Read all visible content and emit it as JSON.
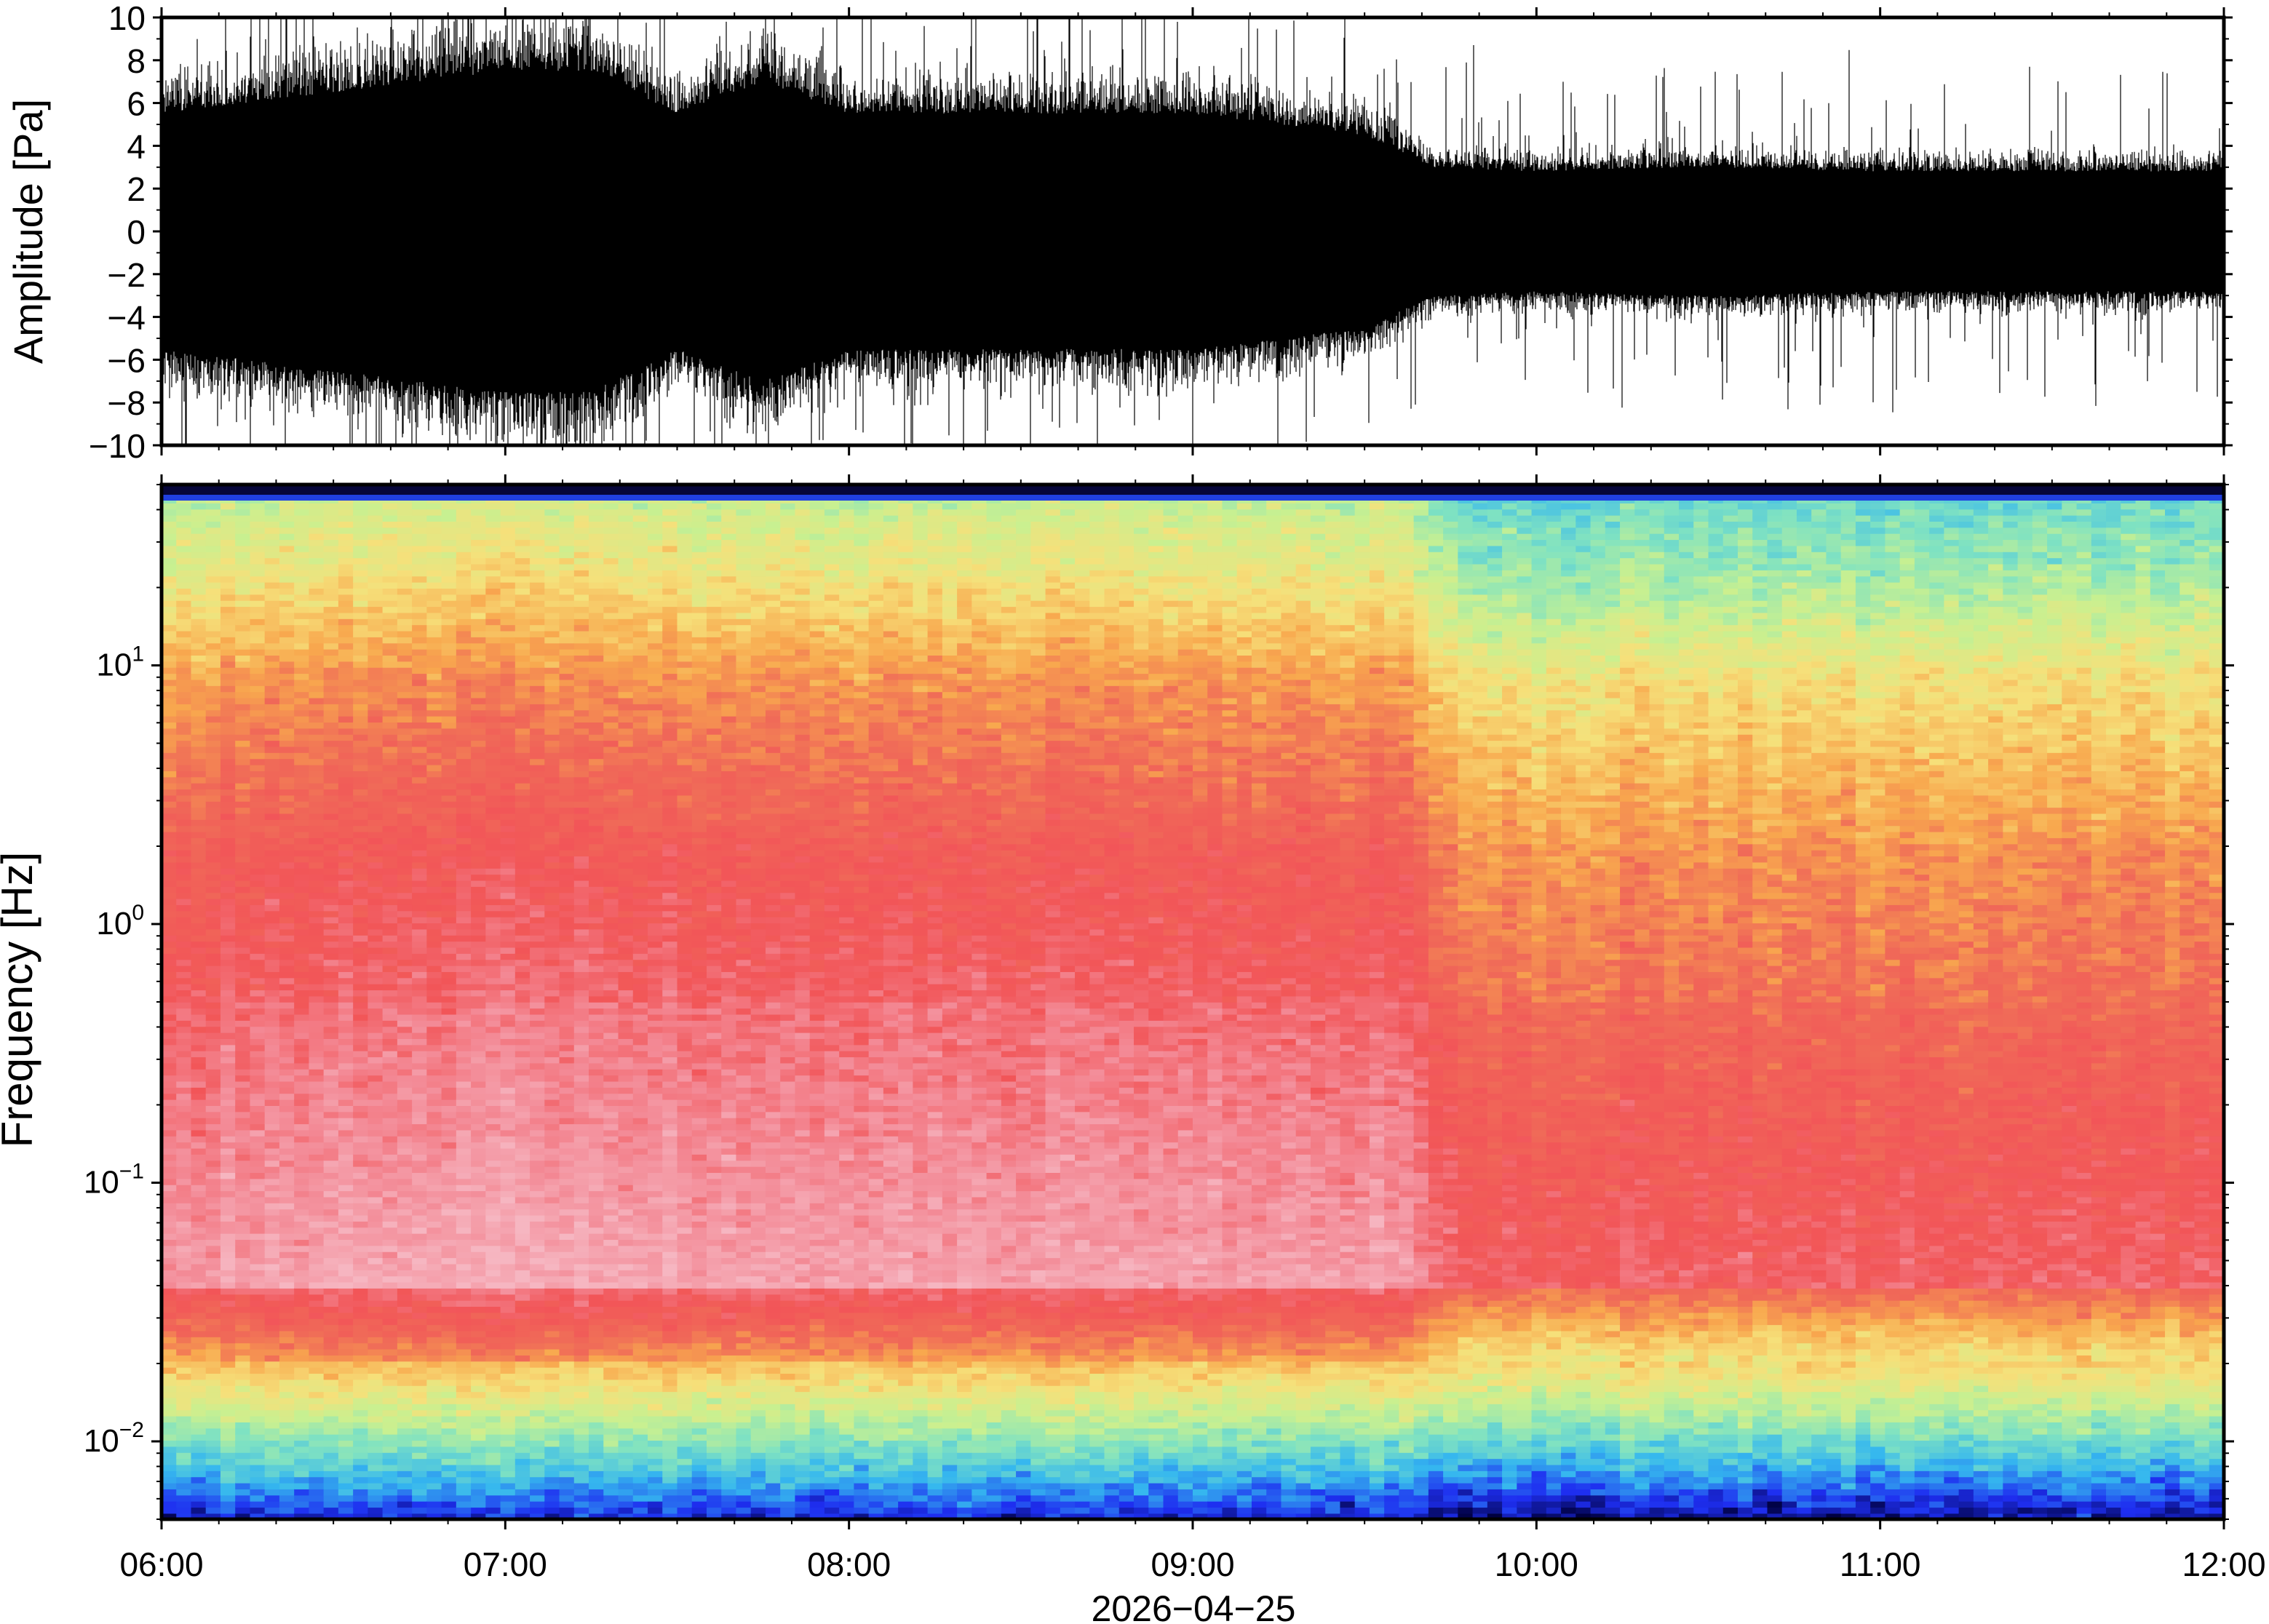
{
  "chart_data": [
    {
      "type": "line",
      "xlim": [
        "06:00",
        "12:00"
      ],
      "ylim": [
        -10,
        10
      ],
      "ylabel": "Amplitude [Pa]",
      "ytick_labels": [
        "10",
        "8",
        "6",
        "4",
        "2",
        "0",
        "−2",
        "−4",
        "−6",
        "−8",
        "−10"
      ],
      "ytick_values": [
        10,
        8,
        6,
        4,
        2,
        0,
        -2,
        -4,
        -6,
        -8,
        -10
      ],
      "series": [
        {
          "x_hours": [
            6.0,
            6.5,
            7.0,
            7.25,
            7.5,
            7.75,
            8.0,
            8.5,
            9.0,
            9.5,
            9.7,
            10.0,
            10.5,
            11.0,
            11.5,
            12.0
          ],
          "envelope": [
            5.5,
            6.5,
            7.5,
            7.5,
            5.5,
            7.0,
            5.5,
            5.5,
            5.5,
            4.5,
            3.0,
            2.8,
            3.0,
            2.8,
            2.8,
            2.8
          ]
        }
      ]
    },
    {
      "type": "heatmap",
      "xlim": [
        "06:00",
        "12:00"
      ],
      "ylim": [
        0.005,
        50
      ],
      "yscale": "log",
      "ylabel": "Frequency [Hz]",
      "ytick_labels": [
        {
          "base": "10",
          "exp": "1",
          "value": 10
        },
        {
          "base": "10",
          "exp": "0",
          "value": 1
        },
        {
          "base": "10",
          "exp": "−1",
          "value": 0.1
        },
        {
          "base": "10",
          "exp": "−2",
          "value": 0.01
        }
      ],
      "xlabel": "2026−04−25",
      "xtick_labels": [
        "06:00",
        "07:00",
        "08:00",
        "09:00",
        "10:00",
        "11:00",
        "12:00"
      ],
      "xtick_hours": [
        6,
        7,
        8,
        9,
        10,
        11,
        12
      ],
      "colormap": [
        "#000040",
        "#1e2ef0",
        "#35b7ef",
        "#7fe2c2",
        "#c9f090",
        "#f6e07a",
        "#f8a84e",
        "#f06a58",
        "#f25558",
        "#f38a96",
        "#f6b6c1"
      ]
    }
  ]
}
